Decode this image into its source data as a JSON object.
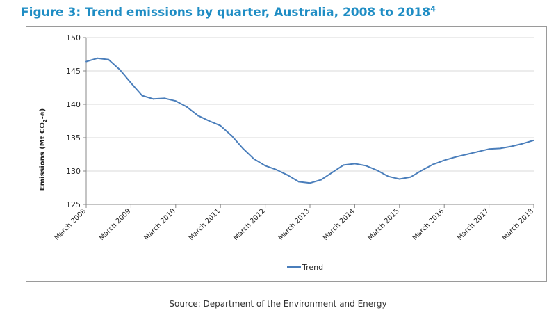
{
  "figure": {
    "title": "Figure 3: Trend emissions by quarter, Australia, 2008 to 2018",
    "title_superscript": "4",
    "source": "Source: Department of the Environment and Energy",
    "accent_color": "#1f8dc4"
  },
  "chart_data": {
    "type": "line",
    "title": "",
    "xlabel": "",
    "ylabel_parts": {
      "before": "Emissions (Mt CO",
      "subscript": "2",
      "after": "-e)"
    },
    "ylim": [
      125,
      150
    ],
    "y_ticks": [
      125,
      130,
      135,
      140,
      145,
      150
    ],
    "x_tick_labels": [
      "March 2008",
      "March 2009",
      "March 2010",
      "March 2011",
      "March 2012",
      "March 2013",
      "March 2014",
      "March 2015",
      "March 2016",
      "March 2017",
      "March 2018"
    ],
    "grid": true,
    "legend_position": "bottom",
    "series": [
      {
        "name": "Trend",
        "color": "#4a7ebb",
        "x": [
          "Mar 2008",
          "Jun 2008",
          "Sep 2008",
          "Dec 2008",
          "Mar 2009",
          "Jun 2009",
          "Sep 2009",
          "Dec 2009",
          "Mar 2010",
          "Jun 2010",
          "Sep 2010",
          "Dec 2010",
          "Mar 2011",
          "Jun 2011",
          "Sep 2011",
          "Dec 2011",
          "Mar 2012",
          "Jun 2012",
          "Sep 2012",
          "Dec 2012",
          "Mar 2013",
          "Jun 2013",
          "Sep 2013",
          "Dec 2013",
          "Mar 2014",
          "Jun 2014",
          "Sep 2014",
          "Dec 2014",
          "Mar 2015",
          "Jun 2015",
          "Sep 2015",
          "Dec 2015",
          "Mar 2016",
          "Jun 2016",
          "Sep 2016",
          "Dec 2016",
          "Mar 2017",
          "Jun 2017",
          "Sep 2017",
          "Dec 2017",
          "Mar 2018"
        ],
        "values": [
          146.4,
          146.9,
          146.7,
          145.2,
          143.2,
          141.3,
          140.8,
          140.9,
          140.5,
          139.6,
          138.3,
          137.5,
          136.8,
          135.3,
          133.4,
          131.8,
          130.8,
          130.2,
          129.4,
          128.4,
          128.2,
          128.7,
          129.8,
          130.9,
          131.1,
          130.8,
          130.1,
          129.2,
          128.8,
          129.1,
          130.1,
          131.0,
          131.6,
          132.1,
          132.5,
          132.9,
          133.3,
          133.4,
          133.7,
          134.1,
          134.6
        ]
      }
    ]
  }
}
